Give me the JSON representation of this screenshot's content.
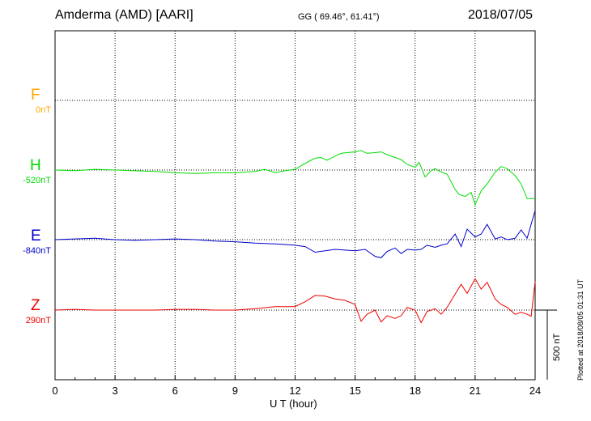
{
  "header": {
    "station": "Amderma (AMD)  [AARI]",
    "coords": "GG ( 69.46°,  61.41°)",
    "date": "2018/07/05"
  },
  "footer": {
    "plotted": "Plotted at 2018/08/05 01:31  UT",
    "scale": "500 nT"
  },
  "chart_data": {
    "type": "line",
    "title": "Amderma (AMD)  [AARI]",
    "xlabel": "U T (hour)",
    "ylabel": "",
    "xlim": [
      0,
      24
    ],
    "x_ticks": [
      "0",
      "3",
      "6",
      "9",
      "12",
      "15",
      "18",
      "21",
      "24"
    ],
    "grid": true,
    "scale_bar_nT": 500,
    "series": [
      {
        "name": "F",
        "baseline": "0nT",
        "color": "#FFA500",
        "x": [],
        "values": []
      },
      {
        "name": "H",
        "baseline": "-520nT",
        "color": "#00DD00",
        "x": [
          0,
          1,
          2,
          3,
          4,
          5,
          6,
          7,
          8,
          9,
          9.5,
          10,
          10.5,
          11,
          11.5,
          12,
          12.3,
          12.6,
          13,
          13.3,
          13.6,
          14,
          14.3,
          14.6,
          15,
          15.3,
          15.6,
          16,
          16.3,
          16.6,
          17,
          17.3,
          17.6,
          18,
          18.2,
          18.5,
          18.8,
          19,
          19.3,
          19.6,
          20,
          20.2,
          20.5,
          20.8,
          21,
          21.3,
          21.6,
          22,
          22.3,
          22.6,
          23,
          23.3,
          23.6,
          23.8,
          24
        ],
        "values": [
          0,
          -5,
          5,
          0,
          -5,
          -10,
          -20,
          -25,
          -20,
          -20,
          -15,
          -10,
          5,
          -20,
          -5,
          5,
          30,
          55,
          85,
          90,
          70,
          100,
          120,
          125,
          130,
          140,
          120,
          125,
          130,
          110,
          90,
          75,
          40,
          20,
          55,
          -50,
          -5,
          10,
          -15,
          -30,
          -140,
          -175,
          -190,
          -160,
          -250,
          -150,
          -100,
          -15,
          25,
          10,
          -40,
          -100,
          -205,
          -205,
          -205
        ]
      },
      {
        "name": "E",
        "baseline": "-840nT",
        "color": "#0000CC",
        "x": [
          0,
          1,
          2,
          3,
          4,
          5,
          6,
          7,
          8,
          9,
          10,
          11,
          12,
          12.5,
          13,
          13.5,
          14,
          14.5,
          15,
          15.5,
          16,
          16.3,
          16.6,
          17,
          17.3,
          17.6,
          18,
          18.3,
          18.6,
          19,
          19.3,
          19.6,
          20,
          20.3,
          20.6,
          21,
          21.3,
          21.6,
          22,
          22.3,
          22.6,
          23,
          23.3,
          23.6,
          24
        ],
        "values": [
          0,
          5,
          10,
          0,
          -5,
          0,
          5,
          0,
          -10,
          -15,
          -25,
          -30,
          -40,
          -50,
          -90,
          -80,
          -70,
          -75,
          -80,
          -70,
          -120,
          -130,
          -85,
          -60,
          -100,
          -70,
          -75,
          -70,
          -40,
          -55,
          -40,
          -30,
          40,
          -50,
          75,
          20,
          40,
          110,
          5,
          20,
          0,
          10,
          70,
          10,
          210
        ]
      },
      {
        "name": "Z",
        "baseline": "290nT",
        "color": "#EE0000",
        "x": [
          0,
          1,
          2,
          3,
          4,
          5,
          6,
          7,
          8,
          9,
          10,
          11,
          12,
          12.5,
          13,
          13.5,
          14,
          14.5,
          15,
          15.3,
          15.6,
          16,
          16.3,
          16.6,
          17,
          17.3,
          17.6,
          18,
          18.3,
          18.6,
          19,
          19.3,
          19.6,
          20,
          20.3,
          20.6,
          21,
          21.3,
          21.6,
          22,
          22.3,
          22.6,
          23,
          23.3,
          23.6,
          23.8,
          24
        ],
        "values": [
          0,
          5,
          0,
          0,
          0,
          0,
          5,
          5,
          0,
          0,
          10,
          25,
          25,
          60,
          105,
          100,
          80,
          70,
          40,
          -80,
          -30,
          0,
          -85,
          -40,
          -60,
          -40,
          20,
          0,
          -90,
          -10,
          10,
          -30,
          20,
          115,
          185,
          120,
          225,
          150,
          200,
          80,
          40,
          20,
          -30,
          -15,
          -30,
          -45,
          205
        ]
      }
    ]
  }
}
